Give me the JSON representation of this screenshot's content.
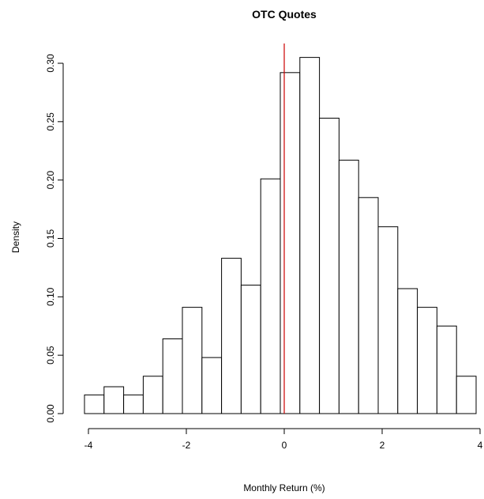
{
  "chart_data": {
    "type": "bar",
    "title": "OTC Quotes",
    "xlabel": "Monthly Return (%)",
    "ylabel": "Density",
    "xlim": [
      -4,
      4
    ],
    "ylim": [
      0,
      0.3
    ],
    "bin_width": 0.4,
    "bins": [
      {
        "start": -4.0,
        "end": -3.6,
        "density": 0.016
      },
      {
        "start": -3.6,
        "end": -3.2,
        "density": 0.023
      },
      {
        "start": -3.2,
        "end": -2.8,
        "density": 0.016
      },
      {
        "start": -2.8,
        "end": -2.4,
        "density": 0.032
      },
      {
        "start": -2.4,
        "end": -2.0,
        "density": 0.064
      },
      {
        "start": -2.0,
        "end": -1.6,
        "density": 0.091
      },
      {
        "start": -1.6,
        "end": -1.2,
        "density": 0.048
      },
      {
        "start": -1.2,
        "end": -0.8,
        "density": 0.133
      },
      {
        "start": -0.8,
        "end": -0.4,
        "density": 0.11
      },
      {
        "start": -0.4,
        "end": 0.0,
        "density": 0.201
      },
      {
        "start": 0.0,
        "end": 0.4,
        "density": 0.292
      },
      {
        "start": 0.4,
        "end": 0.8,
        "density": 0.305
      },
      {
        "start": 0.8,
        "end": 1.2,
        "density": 0.253
      },
      {
        "start": 1.2,
        "end": 1.6,
        "density": 0.217
      },
      {
        "start": 1.6,
        "end": 2.0,
        "density": 0.185
      },
      {
        "start": 2.0,
        "end": 2.4,
        "density": 0.16
      },
      {
        "start": 2.4,
        "end": 2.8,
        "density": 0.107
      },
      {
        "start": 2.8,
        "end": 3.2,
        "density": 0.091
      },
      {
        "start": 3.2,
        "end": 3.6,
        "density": 0.075
      },
      {
        "start": 3.6,
        "end": 4.0,
        "density": 0.032
      }
    ],
    "x_ticks": [
      -4,
      -2,
      0,
      2,
      4
    ],
    "x_tick_labels": [
      "-4",
      "-2",
      "0",
      "2",
      "4"
    ],
    "y_ticks": [
      0.0,
      0.05,
      0.1,
      0.15,
      0.2,
      0.25,
      0.3
    ],
    "y_tick_labels": [
      "0.00",
      "0.05",
      "0.10",
      "0.15",
      "0.20",
      "0.25",
      "0.30"
    ],
    "reference_line": {
      "x": 0,
      "color": "#cc0000"
    },
    "grid": false,
    "legend": "none"
  }
}
